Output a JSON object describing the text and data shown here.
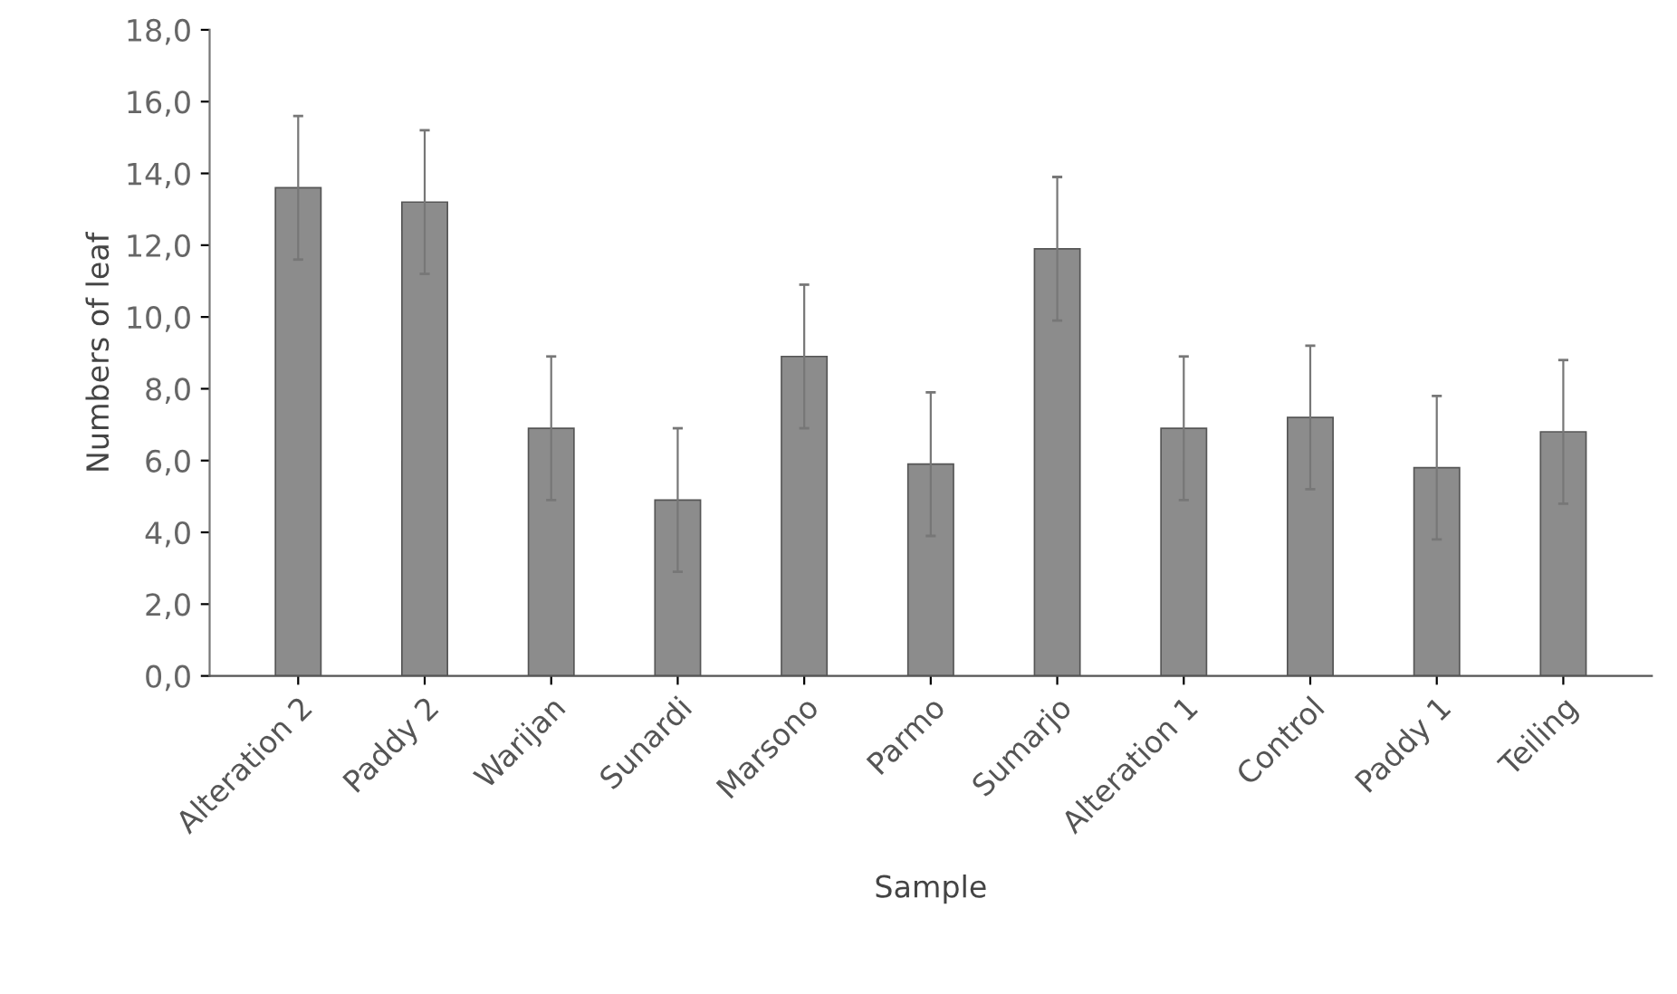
{
  "chart_data": {
    "type": "bar",
    "xlabel": "Sample",
    "ylabel": "Numbers of leaf",
    "categories": [
      "Alteration 2",
      "Paddy 2",
      "Warijan",
      "Sunardi",
      "Marsono",
      "Parmo",
      "Sumarjo",
      "Alteration 1",
      "Control",
      "Paddy 1",
      "Teiling"
    ],
    "values": [
      13.6,
      13.2,
      6.9,
      4.9,
      8.9,
      5.9,
      11.9,
      6.9,
      7.2,
      5.8,
      6.8
    ],
    "errors": [
      2.0,
      2.0,
      2.0,
      2.0,
      2.0,
      2.0,
      2.0,
      2.0,
      2.0,
      2.0,
      2.0
    ],
    "color": "#8c8c8c",
    "ylim": [
      0,
      18
    ],
    "yticks": [
      {
        "value": 0,
        "label": "0,0"
      },
      {
        "value": 2,
        "label": "2,0"
      },
      {
        "value": 4,
        "label": "4,0"
      },
      {
        "value": 6,
        "label": "6,0"
      },
      {
        "value": 8,
        "label": "8,0"
      },
      {
        "value": 10,
        "label": "10,0"
      },
      {
        "value": 12,
        "label": "12,0"
      },
      {
        "value": 14,
        "label": "14,0"
      },
      {
        "value": 16,
        "label": "16,0"
      },
      {
        "value": 18,
        "label": "18,0"
      }
    ],
    "grid": false
  }
}
